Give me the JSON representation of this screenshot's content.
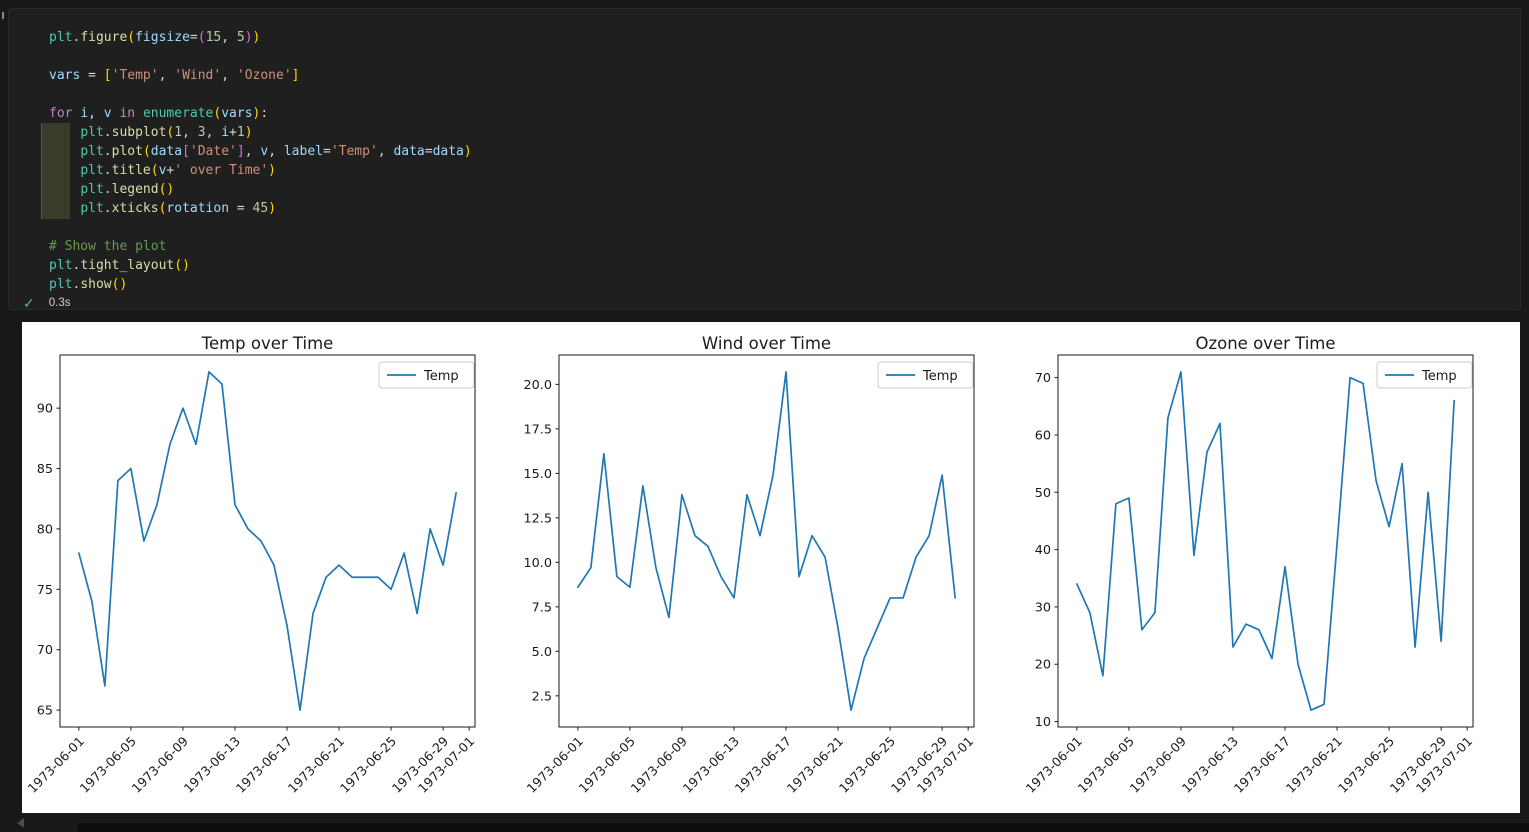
{
  "app": {
    "background_color": "#181818",
    "cell_background_color": "#1f1f1f",
    "accent_line_color": "#1f77b4"
  },
  "editor": {
    "palette": {
      "module": "#4EC9B0",
      "function": "#DCDCAA",
      "variable": "#9CDCFE",
      "parameter": "#9CDCFE",
      "keyword": "#C586C0",
      "string": "#CE9178",
      "number": "#B5CEA8",
      "comment": "#6A9955",
      "plain": "#D4D4D4",
      "bracket1": "#FFD700",
      "bracket2": "#DA70D6"
    },
    "code_lines": [
      [
        [
          "plt",
          "module"
        ],
        [
          ".",
          "plain"
        ],
        [
          "figure",
          "function"
        ],
        [
          "(",
          "bracket1"
        ],
        [
          "figsize",
          "parameter"
        ],
        [
          "=",
          "plain"
        ],
        [
          "(",
          "bracket2"
        ],
        [
          "15",
          "number"
        ],
        [
          ", ",
          "plain"
        ],
        [
          "5",
          "number"
        ],
        [
          ")",
          "bracket2"
        ],
        [
          ")",
          "bracket1"
        ]
      ],
      [],
      [
        [
          "vars",
          "variable"
        ],
        [
          " = ",
          "plain"
        ],
        [
          "[",
          "bracket1"
        ],
        [
          "'Temp'",
          "string"
        ],
        [
          ", ",
          "plain"
        ],
        [
          "'Wind'",
          "string"
        ],
        [
          ", ",
          "plain"
        ],
        [
          "'Ozone'",
          "string"
        ],
        [
          "]",
          "bracket1"
        ]
      ],
      [],
      [
        [
          "for",
          "keyword"
        ],
        [
          " ",
          "plain"
        ],
        [
          "i",
          "variable"
        ],
        [
          ", ",
          "plain"
        ],
        [
          "v",
          "variable"
        ],
        [
          " ",
          "plain"
        ],
        [
          "in",
          "keyword"
        ],
        [
          " ",
          "plain"
        ],
        [
          "enumerate",
          "module"
        ],
        [
          "(",
          "bracket1"
        ],
        [
          "vars",
          "variable"
        ],
        [
          ")",
          "bracket1"
        ],
        [
          ":",
          "plain"
        ]
      ],
      [
        [
          "    ",
          "plain"
        ],
        [
          "plt",
          "module"
        ],
        [
          ".",
          "plain"
        ],
        [
          "subplot",
          "function"
        ],
        [
          "(",
          "bracket1"
        ],
        [
          "1",
          "number"
        ],
        [
          ", ",
          "plain"
        ],
        [
          "3",
          "number"
        ],
        [
          ", ",
          "plain"
        ],
        [
          "i",
          "variable"
        ],
        [
          "+",
          "plain"
        ],
        [
          "1",
          "number"
        ],
        [
          ")",
          "bracket1"
        ]
      ],
      [
        [
          "    ",
          "plain"
        ],
        [
          "plt",
          "module"
        ],
        [
          ".",
          "plain"
        ],
        [
          "plot",
          "function"
        ],
        [
          "(",
          "bracket1"
        ],
        [
          "data",
          "variable"
        ],
        [
          "[",
          "bracket2"
        ],
        [
          "'Date'",
          "string"
        ],
        [
          "]",
          "bracket2"
        ],
        [
          ", ",
          "plain"
        ],
        [
          "v",
          "variable"
        ],
        [
          ", ",
          "plain"
        ],
        [
          "label",
          "parameter"
        ],
        [
          "=",
          "plain"
        ],
        [
          "'Temp'",
          "string"
        ],
        [
          ", ",
          "plain"
        ],
        [
          "data",
          "parameter"
        ],
        [
          "=",
          "plain"
        ],
        [
          "data",
          "variable"
        ],
        [
          ")",
          "bracket1"
        ]
      ],
      [
        [
          "    ",
          "plain"
        ],
        [
          "plt",
          "module"
        ],
        [
          ".",
          "plain"
        ],
        [
          "title",
          "function"
        ],
        [
          "(",
          "bracket1"
        ],
        [
          "v",
          "variable"
        ],
        [
          "+",
          "plain"
        ],
        [
          "' over Time'",
          "string"
        ],
        [
          ")",
          "bracket1"
        ]
      ],
      [
        [
          "    ",
          "plain"
        ],
        [
          "plt",
          "module"
        ],
        [
          ".",
          "plain"
        ],
        [
          "legend",
          "function"
        ],
        [
          "(",
          "bracket1"
        ],
        [
          ")",
          "bracket1"
        ]
      ],
      [
        [
          "    ",
          "plain"
        ],
        [
          "plt",
          "module"
        ],
        [
          ".",
          "plain"
        ],
        [
          "xticks",
          "function"
        ],
        [
          "(",
          "bracket1"
        ],
        [
          "rotation",
          "parameter"
        ],
        [
          " = ",
          "plain"
        ],
        [
          "45",
          "number"
        ],
        [
          ")",
          "bracket1"
        ]
      ],
      [],
      [
        [
          "# Show the plot",
          "comment"
        ]
      ],
      [
        [
          "plt",
          "module"
        ],
        [
          ".",
          "plain"
        ],
        [
          "tight_layout",
          "function"
        ],
        [
          "(",
          "bracket1"
        ],
        [
          ")",
          "bracket1"
        ]
      ],
      [
        [
          "plt",
          "module"
        ],
        [
          ".",
          "plain"
        ],
        [
          "show",
          "function"
        ],
        [
          "(",
          "bracket1"
        ],
        [
          ")",
          "bracket1"
        ]
      ]
    ],
    "execution": {
      "status": "success",
      "check_glyph": "✓",
      "duration": "0.3s",
      "check_color": "#5dbb63"
    }
  },
  "chart_data": [
    {
      "type": "line",
      "title": "Temp over Time",
      "legend": {
        "label": "Temp",
        "loc": "upper right"
      },
      "line_color": "#1f77b4",
      "x_dates": [
        "1973-06-01",
        "1973-06-02",
        "1973-06-03",
        "1973-06-04",
        "1973-06-05",
        "1973-06-06",
        "1973-06-07",
        "1973-06-08",
        "1973-06-09",
        "1973-06-10",
        "1973-06-11",
        "1973-06-12",
        "1973-06-13",
        "1973-06-14",
        "1973-06-15",
        "1973-06-16",
        "1973-06-17",
        "1973-06-18",
        "1973-06-19",
        "1973-06-20",
        "1973-06-21",
        "1973-06-22",
        "1973-06-23",
        "1973-06-24",
        "1973-06-25",
        "1973-06-26",
        "1973-06-27",
        "1973-06-28",
        "1973-06-29",
        "1973-06-30"
      ],
      "values": [
        78,
        74,
        67,
        84,
        85,
        79,
        82,
        87,
        90,
        87,
        93,
        92,
        82,
        80,
        79,
        77,
        72,
        65,
        73,
        76,
        77,
        76,
        76,
        76,
        75,
        78,
        73,
        80,
        77,
        83
      ],
      "ylim": [
        63.6,
        94.4
      ],
      "yticks": [
        {
          "v": 65,
          "label": "65"
        },
        {
          "v": 70,
          "label": "70"
        },
        {
          "v": 75,
          "label": "75"
        },
        {
          "v": 80,
          "label": "80"
        },
        {
          "v": 85,
          "label": "85"
        },
        {
          "v": 90,
          "label": "90"
        }
      ],
      "xticks": [
        {
          "day": 0,
          "label": "1973-06-01"
        },
        {
          "day": 4,
          "label": "1973-06-05"
        },
        {
          "day": 8,
          "label": "1973-06-09"
        },
        {
          "day": 12,
          "label": "1973-06-13"
        },
        {
          "day": 16,
          "label": "1973-06-17"
        },
        {
          "day": 20,
          "label": "1973-06-21"
        },
        {
          "day": 24,
          "label": "1973-06-25"
        },
        {
          "day": 28,
          "label": "1973-06-29"
        },
        {
          "day": 30,
          "label": "1973-07-01"
        }
      ],
      "x_margin_days": 1.45,
      "xtick_rotation": 45,
      "grid": false
    },
    {
      "type": "line",
      "title": "Wind over Time",
      "legend": {
        "label": "Temp",
        "loc": "upper right"
      },
      "line_color": "#1f77b4",
      "x_dates": [
        "1973-06-01",
        "1973-06-02",
        "1973-06-03",
        "1973-06-04",
        "1973-06-05",
        "1973-06-06",
        "1973-06-07",
        "1973-06-08",
        "1973-06-09",
        "1973-06-10",
        "1973-06-11",
        "1973-06-12",
        "1973-06-13",
        "1973-06-14",
        "1973-06-15",
        "1973-06-16",
        "1973-06-17",
        "1973-06-18",
        "1973-06-19",
        "1973-06-20",
        "1973-06-21",
        "1973-06-22",
        "1973-06-23",
        "1973-06-24",
        "1973-06-25",
        "1973-06-26",
        "1973-06-27",
        "1973-06-28",
        "1973-06-29",
        "1973-06-30"
      ],
      "values": [
        8.6,
        9.7,
        16.1,
        9.2,
        8.6,
        14.3,
        9.7,
        6.9,
        13.8,
        11.5,
        10.9,
        9.2,
        8.0,
        13.8,
        11.5,
        14.9,
        20.7,
        9.2,
        11.5,
        10.3,
        6.3,
        1.7,
        4.6,
        6.3,
        8.0,
        8.0,
        10.3,
        11.5,
        14.9,
        8.0
      ],
      "ylim": [
        0.75,
        21.65
      ],
      "yticks": [
        {
          "v": 2.5,
          "label": "2.5"
        },
        {
          "v": 5.0,
          "label": "5.0"
        },
        {
          "v": 7.5,
          "label": "7.5"
        },
        {
          "v": 10.0,
          "label": "10.0"
        },
        {
          "v": 12.5,
          "label": "12.5"
        },
        {
          "v": 15.0,
          "label": "15.0"
        },
        {
          "v": 17.5,
          "label": "17.5"
        },
        {
          "v": 20.0,
          "label": "20.0"
        }
      ],
      "xticks": [
        {
          "day": 0,
          "label": "1973-06-01"
        },
        {
          "day": 4,
          "label": "1973-06-05"
        },
        {
          "day": 8,
          "label": "1973-06-09"
        },
        {
          "day": 12,
          "label": "1973-06-13"
        },
        {
          "day": 16,
          "label": "1973-06-17"
        },
        {
          "day": 20,
          "label": "1973-06-21"
        },
        {
          "day": 24,
          "label": "1973-06-25"
        },
        {
          "day": 28,
          "label": "1973-06-29"
        },
        {
          "day": 30,
          "label": "1973-07-01"
        }
      ],
      "x_margin_days": 1.45,
      "xtick_rotation": 45,
      "grid": false
    },
    {
      "type": "line",
      "title": "Ozone over Time",
      "legend": {
        "label": "Temp",
        "loc": "upper right"
      },
      "line_color": "#1f77b4",
      "x_dates": [
        "1973-06-01",
        "1973-06-02",
        "1973-06-03",
        "1973-06-04",
        "1973-06-05",
        "1973-06-06",
        "1973-06-07",
        "1973-06-08",
        "1973-06-09",
        "1973-06-10",
        "1973-06-11",
        "1973-06-12",
        "1973-06-13",
        "1973-06-14",
        "1973-06-15",
        "1973-06-16",
        "1973-06-17",
        "1973-06-18",
        "1973-06-19",
        "1973-06-20",
        "1973-06-21",
        "1973-06-22",
        "1973-06-23",
        "1973-06-24",
        "1973-06-25",
        "1973-06-26",
        "1973-06-27",
        "1973-06-28",
        "1973-06-29",
        "1973-06-30"
      ],
      "values": [
        34,
        29,
        18,
        48,
        49,
        26,
        29,
        63,
        71,
        39,
        57,
        62,
        23,
        27,
        26,
        21,
        37,
        20,
        12,
        13,
        41,
        70,
        69,
        52,
        44,
        55,
        23,
        50,
        24,
        66
      ],
      "ylim": [
        9.05,
        73.95
      ],
      "yticks": [
        {
          "v": 10,
          "label": "10"
        },
        {
          "v": 20,
          "label": "20"
        },
        {
          "v": 30,
          "label": "30"
        },
        {
          "v": 40,
          "label": "40"
        },
        {
          "v": 50,
          "label": "50"
        },
        {
          "v": 60,
          "label": "60"
        },
        {
          "v": 70,
          "label": "70"
        }
      ],
      "xticks": [
        {
          "day": 0,
          "label": "1973-06-01"
        },
        {
          "day": 4,
          "label": "1973-06-05"
        },
        {
          "day": 8,
          "label": "1973-06-09"
        },
        {
          "day": 12,
          "label": "1973-06-13"
        },
        {
          "day": 16,
          "label": "1973-06-17"
        },
        {
          "day": 20,
          "label": "1973-06-21"
        },
        {
          "day": 24,
          "label": "1973-06-25"
        },
        {
          "day": 28,
          "label": "1973-06-29"
        },
        {
          "day": 30,
          "label": "1973-07-01"
        }
      ],
      "x_margin_days": 1.45,
      "xtick_rotation": 45,
      "grid": false
    }
  ]
}
